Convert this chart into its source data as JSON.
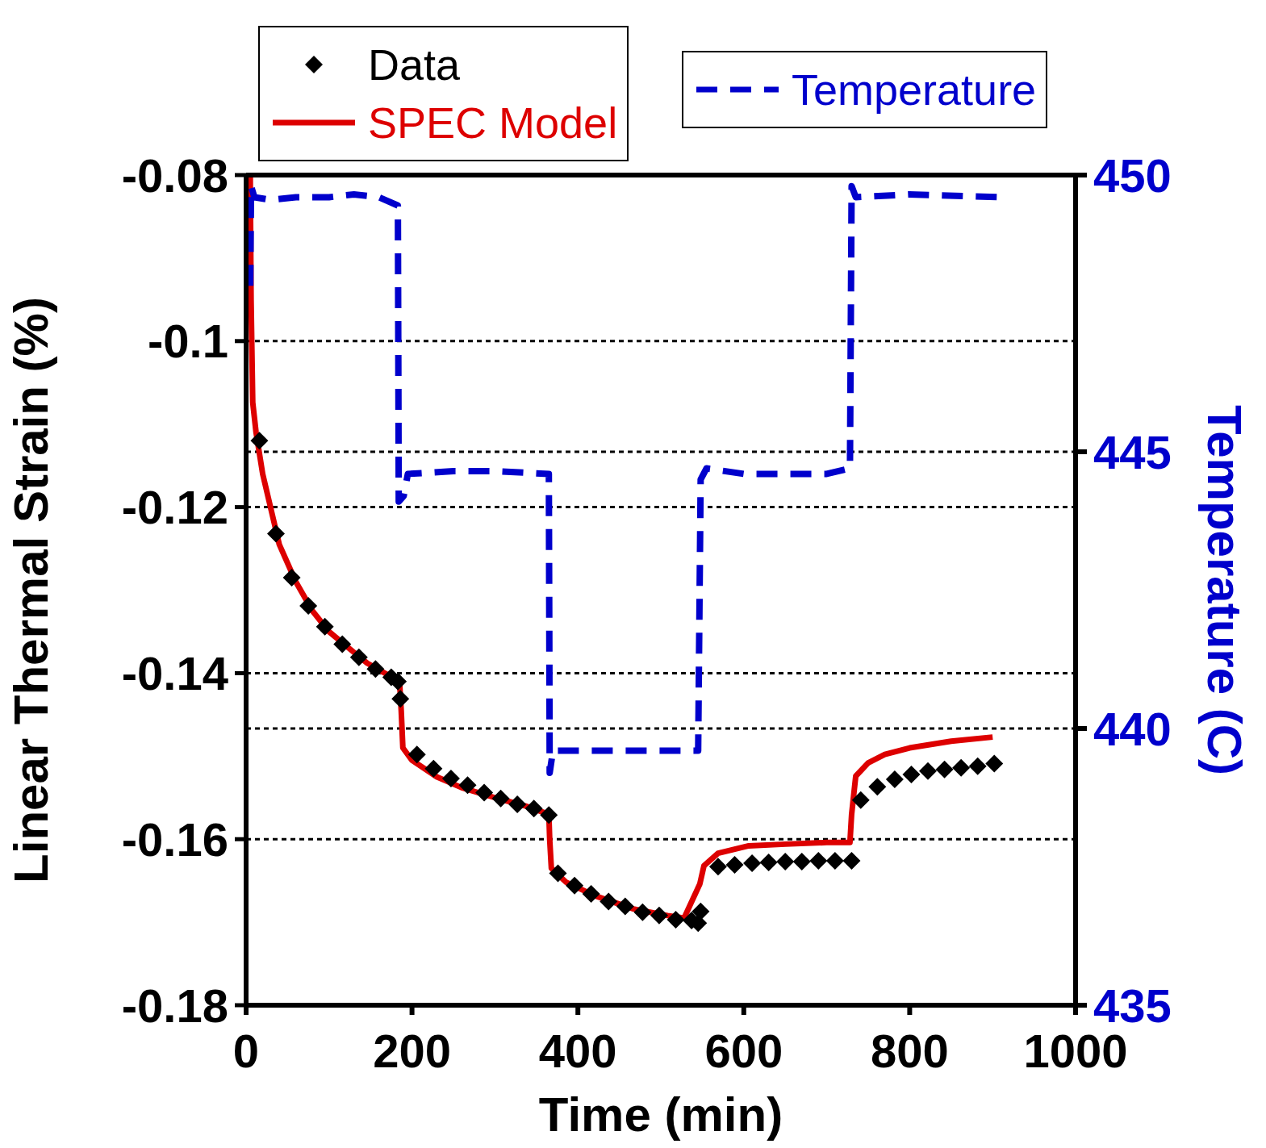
{
  "chart_data": {
    "type": "line",
    "xlabel": "Time (min)",
    "ylabel": "Linear Thermal Strain (%)",
    "y2label": "Temperature (C)",
    "xlim": [
      0,
      1000
    ],
    "xticks": [
      0,
      200,
      400,
      600,
      800,
      1000
    ],
    "ylim": [
      -0.18,
      -0.08
    ],
    "yticks": [
      -0.18,
      -0.16,
      -0.14,
      -0.12,
      -0.1,
      -0.08
    ],
    "y2lim": [
      435,
      450
    ],
    "y2ticks": [
      435,
      440,
      445,
      450
    ],
    "grid": true,
    "legend": "top",
    "series": [
      {
        "name": "Data",
        "type": "scatter",
        "marker": "diamond",
        "color": "#000000",
        "x": [
          16,
          36,
          55,
          75,
          95,
          116,
          136,
          156,
          175,
          183,
          186,
          206,
          226,
          247,
          267,
          287,
          307,
          327,
          347,
          365,
          376,
          396,
          416,
          437,
          457,
          478,
          498,
          518,
          537,
          545,
          548,
          569,
          589,
          610,
          630,
          650,
          670,
          690,
          710,
          730,
          741,
          761,
          782,
          802,
          822,
          842,
          862,
          882,
          902
        ],
        "values": [
          -0.112,
          -0.1232,
          -0.1285,
          -0.1319,
          -0.1344,
          -0.1365,
          -0.1381,
          -0.1395,
          -0.1405,
          -0.141,
          -0.1431,
          -0.1498,
          -0.1515,
          -0.1527,
          -0.1535,
          -0.1544,
          -0.1551,
          -0.1558,
          -0.1563,
          -0.1571,
          -0.1641,
          -0.1656,
          -0.1666,
          -0.1675,
          -0.1681,
          -0.1688,
          -0.1692,
          -0.1697,
          -0.1698,
          -0.1701,
          -0.1687,
          -0.1633,
          -0.1631,
          -0.1629,
          -0.1628,
          -0.1627,
          -0.1627,
          -0.1626,
          -0.1626,
          -0.1626,
          -0.1553,
          -0.1537,
          -0.1528,
          -0.1522,
          -0.1518,
          -0.1516,
          -0.1514,
          -0.1512,
          -0.1509
        ]
      },
      {
        "name": "SPEC Model",
        "line_style": "solid",
        "color": "#dd0000",
        "x": [
          5,
          6,
          8,
          12,
          20,
          40,
          60,
          80,
          100,
          130,
          146,
          185,
          187,
          189,
          200,
          230,
          260,
          300,
          337,
          365,
          366,
          368,
          386,
          420,
          467,
          508,
          528,
          547,
          552,
          569,
          606,
          650,
          700,
          728,
          730,
          735,
          750,
          770,
          800,
          850,
          900
        ],
        "values": [
          -0.08,
          -0.095,
          -0.1074,
          -0.111,
          -0.116,
          -0.1245,
          -0.129,
          -0.1325,
          -0.135,
          -0.1375,
          -0.1388,
          -0.141,
          -0.1445,
          -0.149,
          -0.1505,
          -0.1525,
          -0.1538,
          -0.155,
          -0.156,
          -0.157,
          -0.16,
          -0.1635,
          -0.1652,
          -0.1668,
          -0.1684,
          -0.1692,
          -0.1695,
          -0.1654,
          -0.1632,
          -0.1617,
          -0.1608,
          -0.1606,
          -0.1604,
          -0.1604,
          -0.157,
          -0.1524,
          -0.1508,
          -0.1498,
          -0.149,
          -0.1482,
          -0.1477
        ]
      },
      {
        "name": "Temperature",
        "axis": "y2",
        "line_style": "dashed",
        "color": "#0000cc",
        "x": [
          5,
          6,
          10,
          30,
          60,
          100,
          130,
          160,
          183,
          184,
          190,
          195,
          250,
          300,
          365,
          366,
          370,
          450,
          545,
          548,
          555,
          600,
          700,
          728,
          730,
          735,
          800,
          910
        ],
        "values": [
          448,
          449.8,
          449.6,
          449.55,
          449.6,
          449.6,
          449.65,
          449.6,
          449.45,
          444.1,
          444.2,
          444.6,
          444.65,
          444.65,
          444.6,
          439.2,
          439.6,
          439.6,
          439.6,
          444.5,
          444.7,
          444.6,
          444.6,
          444.7,
          449.8,
          449.6,
          449.65,
          449.6
        ]
      }
    ]
  }
}
